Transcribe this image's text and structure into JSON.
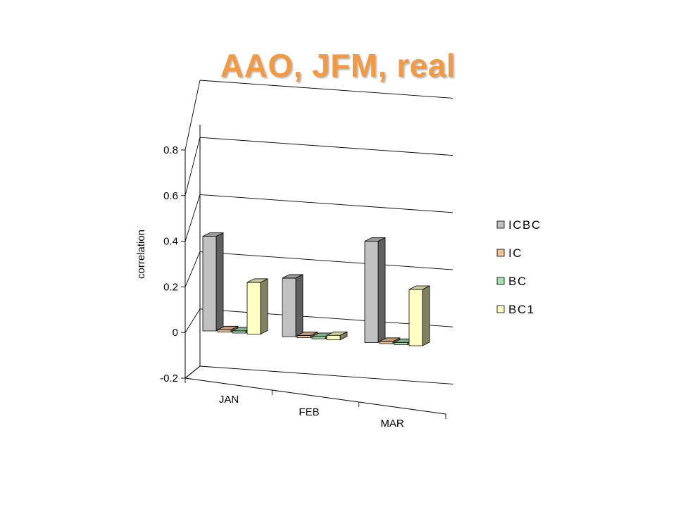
{
  "slide": {
    "title": "AAO, JFM, real"
  },
  "chart_data": {
    "type": "bar",
    "title": "",
    "xlabel": "",
    "ylabel": "correlation",
    "ylim": [
      -0.2,
      0.8
    ],
    "yticks": [
      {
        "value": -0.2,
        "label": "-0.2"
      },
      {
        "value": 0,
        "label": "0"
      },
      {
        "value": 0.2,
        "label": "0.2"
      },
      {
        "value": 0.4,
        "label": "0.4"
      },
      {
        "value": 0.6,
        "label": "0.6"
      },
      {
        "value": 0.8,
        "label": "0.8"
      }
    ],
    "categories": [
      "JAN",
      "FEB",
      "MAR"
    ],
    "series": [
      {
        "name": "ICBC",
        "color": "#c0c0c0",
        "values": [
          0.42,
          0.26,
          0.45
        ]
      },
      {
        "name": "IC",
        "color": "#f0c29a",
        "values": [
          0.01,
          0.01,
          0.01
        ]
      },
      {
        "name": "BC",
        "color": "#a8e0b2",
        "values": [
          0.01,
          0.01,
          0.01
        ]
      },
      {
        "name": "BC1",
        "color": "#ffffc4",
        "values": [
          0.23,
          0.02,
          0.25
        ]
      }
    ],
    "grid": true,
    "legend": "right",
    "style": "3d-clustered-column"
  }
}
